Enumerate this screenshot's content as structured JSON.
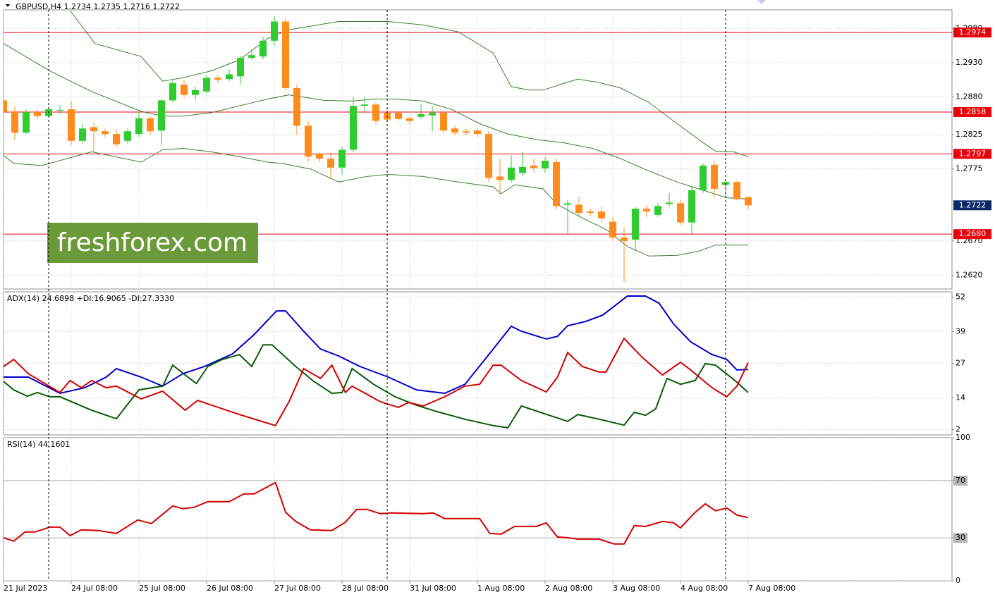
{
  "chart_data": [
    {
      "type": "candlestick",
      "title": "GBPUSD,H4  1.2734 1.2735 1.2716 1.2722",
      "open": [
        1.2875,
        1.2859,
        1.2828,
        1.2858,
        1.2852,
        1.286,
        1.2862,
        1.2816,
        1.2836,
        1.283,
        1.2826,
        1.2816,
        1.2826,
        1.2849,
        1.2831,
        1.2875,
        1.2898,
        1.2883,
        1.2888,
        1.2908,
        1.2906,
        1.291,
        1.2937,
        1.2939,
        1.2962,
        1.299,
        1.2893,
        1.2838,
        1.2797,
        1.279,
        1.2777,
        1.2803,
        1.2867,
        1.2869,
        1.2857,
        1.2857,
        1.2849,
        1.2851,
        1.2853,
        1.2857,
        1.2834,
        1.283,
        1.2831,
        1.2826,
        1.2764,
        1.2759,
        1.2769,
        1.278,
        1.2776,
        1.2785,
        1.2723,
        1.2723,
        1.2713,
        1.2713,
        1.2698,
        1.2675,
        1.2672,
        1.2717,
        1.2708,
        1.2724,
        1.2725,
        1.2697,
        1.2744,
        1.2781,
        1.2752,
        1.2756,
        1.2734
      ],
      "high": [
        1.29,
        1.2866,
        1.2862,
        1.2862,
        1.2866,
        1.2868,
        1.2874,
        1.284,
        1.2843,
        1.2834,
        1.2832,
        1.2834,
        1.2858,
        1.2852,
        1.2877,
        1.2904,
        1.2905,
        1.2895,
        1.2912,
        1.2912,
        1.292,
        1.294,
        1.295,
        1.2968,
        1.2998,
        1.2994,
        1.2898,
        1.2845,
        1.28,
        1.28,
        1.2807,
        1.288,
        1.288,
        1.2872,
        1.2862,
        1.286,
        1.2852,
        1.287,
        1.2866,
        1.286,
        1.2838,
        1.2834,
        1.2835,
        1.283,
        1.279,
        1.2795,
        1.28,
        1.279,
        1.2793,
        1.279,
        1.273,
        1.2735,
        1.2717,
        1.272,
        1.2705,
        1.269,
        1.272,
        1.2722,
        1.2725,
        1.274,
        1.273,
        1.275,
        1.2783,
        1.2786,
        1.276,
        1.2758,
        1.2735
      ],
      "low": [
        1.285,
        1.2817,
        1.2826,
        1.2848,
        1.285,
        1.2855,
        1.281,
        1.2812,
        1.28,
        1.2822,
        1.2806,
        1.2812,
        1.2822,
        1.2826,
        1.281,
        1.2872,
        1.288,
        1.2875,
        1.2885,
        1.29,
        1.2903,
        1.2898,
        1.2934,
        1.2935,
        1.2955,
        1.289,
        1.2825,
        1.2785,
        1.2785,
        1.276,
        1.2767,
        1.28,
        1.286,
        1.284,
        1.2842,
        1.2845,
        1.284,
        1.2848,
        1.283,
        1.2828,
        1.2824,
        1.2824,
        1.2822,
        1.2756,
        1.2738,
        1.2755,
        1.2765,
        1.277,
        1.277,
        1.2716,
        1.268,
        1.2704,
        1.2706,
        1.2698,
        1.267,
        1.261,
        1.2655,
        1.2705,
        1.2705,
        1.272,
        1.2693,
        1.268,
        1.274,
        1.2735,
        1.2735,
        1.2729,
        1.2716
      ],
      "close": [
        1.2858,
        1.2828,
        1.2858,
        1.2852,
        1.2862,
        1.2861,
        1.2816,
        1.2834,
        1.283,
        1.2826,
        1.2811,
        1.283,
        1.2849,
        1.283,
        1.2875,
        1.29,
        1.2883,
        1.289,
        1.2908,
        1.2905,
        1.2913,
        1.2937,
        1.2941,
        1.2962,
        1.299,
        1.2893,
        1.2838,
        1.2793,
        1.279,
        1.2777,
        1.2803,
        1.2867,
        1.2869,
        1.2845,
        1.2847,
        1.2848,
        1.2845,
        1.2855,
        1.2857,
        1.2831,
        1.2828,
        1.2828,
        1.2826,
        1.2762,
        1.2759,
        1.2777,
        1.2778,
        1.2776,
        1.2787,
        1.2721,
        1.2725,
        1.2711,
        1.2711,
        1.2703,
        1.2675,
        1.267,
        1.2717,
        1.2713,
        1.2721,
        1.2726,
        1.2697,
        1.2744,
        1.278,
        1.2746,
        1.2756,
        1.2731,
        1.2722
      ],
      "up_color": "#2ecc2e",
      "down_color": "#ff8c1a",
      "bands": [
        {
          "color": "#3d7d33",
          "x": [
            5.9,
            8.1,
            12.2,
            14.1,
            15.9,
            18.4,
            20.9,
            23.4,
            25.3,
            29.7,
            34.1,
            37.2,
            40.3,
            43.4,
            45,
            46.6,
            47.8,
            49.7,
            50.9,
            52.8,
            54.7,
            57.2,
            59.7,
            62.2,
            63.1,
            64.7,
            66
          ],
          "values": [
            1.3006,
            1.2958,
            1.2939,
            1.2903,
            1.2908,
            1.2918,
            1.2934,
            1.2965,
            1.2978,
            1.299,
            1.299,
            1.2985,
            1.2975,
            1.2944,
            1.2895,
            1.289,
            1.289,
            1.29,
            1.2906,
            1.2901,
            1.2893,
            1.2872,
            1.2841,
            1.2811,
            1.2801,
            1.28,
            1.2793
          ]
        },
        {
          "color": "#3d7d33",
          "x": [
            0,
            4.1,
            7.8,
            12.2,
            14.1,
            15.9,
            18.4,
            20.9,
            23.4,
            25.3,
            28.4,
            30.9,
            32.8,
            34.7,
            37.2,
            39.7,
            42.2,
            44.7,
            47.2,
            49.7,
            52.2,
            54.7,
            57.2,
            59.7,
            61.6,
            64.1,
            66
          ],
          "values": [
            1.2958,
            1.2918,
            1.2888,
            1.2859,
            1.2852,
            1.2852,
            1.2857,
            1.2867,
            1.2877,
            1.2883,
            1.2875,
            1.2874,
            1.2877,
            1.2877,
            1.2874,
            1.2862,
            1.2841,
            1.2826,
            1.2818,
            1.2813,
            1.2805,
            1.279,
            1.2772,
            1.2756,
            1.2746,
            1.2733,
            1.2731
          ]
        },
        {
          "color": "#3d7d33",
          "x": [
            0,
            0.9,
            3.4,
            7.8,
            12.2,
            14.1,
            15.9,
            18.4,
            20.9,
            23.4,
            24.7,
            27.2,
            29.7,
            32.2,
            34.1,
            37.2,
            40.3,
            43.4,
            44.1,
            45.3,
            47.8,
            49.1,
            51.6,
            53.4,
            55.3,
            57.2,
            59.7,
            61.6,
            63.1,
            66
          ],
          "values": [
            1.2795,
            1.2783,
            1.278,
            1.28,
            1.2785,
            1.2803,
            1.2805,
            1.28,
            1.2793,
            1.2785,
            1.2783,
            1.2775,
            1.2756,
            1.2764,
            1.2767,
            1.2764,
            1.2756,
            1.2749,
            1.2739,
            1.2752,
            1.2746,
            1.2723,
            1.2701,
            1.2687,
            1.2662,
            1.2648,
            1.2649,
            1.2655,
            1.2664,
            1.2664
          ]
        }
      ],
      "levels": [
        1.2974,
        1.2858,
        1.2797,
        {
          "value": 1.268,
          "label": "1.2680"
        }
      ],
      "level_color": "#e8000b",
      "last_price": 1.2722,
      "last_price_color": "#0b2a66",
      "period_separators": [
        4,
        34,
        64
      ],
      "watermark": "freshforex.com",
      "watermark_color": "#6b9a3a",
      "xlim": [
        0,
        84.06
      ],
      "ylim": [
        1.26,
        1.3007
      ],
      "yticks": [
        {
          "value": 1.262,
          "label": "1.2620"
        },
        {
          "value": 1.267,
          "label": "1.2670"
        },
        1.2775,
        1.2825,
        {
          "value": 1.288,
          "label": "1.2880"
        },
        {
          "value": 1.293,
          "label": "1.2930"
        },
        {
          "value": 1.298,
          "label": "1.2980"
        }
      ],
      "grid": true
    },
    {
      "type": "line",
      "title": "ADX(14) 24.6898 +DI:16.9065 -DI:27.3330",
      "series": [
        {
          "color": "#0000c8",
          "x": [
            0,
            2.2,
            5,
            7.2,
            9.1,
            10,
            12.2,
            14.1,
            15.9,
            17.8,
            20.3,
            22.2,
            24.2,
            25,
            26.6,
            28.1,
            29.7,
            31.6,
            34.1,
            36.6,
            39.1,
            40.9,
            43.4,
            45,
            45.9,
            48.1,
            49.1,
            50,
            51.6,
            53.1,
            55.3,
            56.9,
            58.1,
            59.4,
            60.9,
            62.8,
            64.1,
            65,
            66
          ],
          "values": [
            21.8,
            21.8,
            15.7,
            17.8,
            21.8,
            25.0,
            21.8,
            18.4,
            23.1,
            25.8,
            30.6,
            37.8,
            46.8,
            46.8,
            39.1,
            32.4,
            29.8,
            25.8,
            21.8,
            17.0,
            15.7,
            19.1,
            32.4,
            41.0,
            39.1,
            36.2,
            37.2,
            41.2,
            42.8,
            45.2,
            52.4,
            52.4,
            49.7,
            41.8,
            35.1,
            30.3,
            28.5,
            24.5,
            24.7
          ]
        },
        {
          "color": "#0a5a0a",
          "x": [
            0,
            0.9,
            2.1,
            3,
            4.1,
            5,
            7.8,
            10,
            12,
            14.1,
            15,
            16.1,
            17.1,
            18.1,
            19.4,
            20.9,
            22,
            23,
            23.8,
            25.9,
            27.5,
            29.1,
            30,
            30.9,
            32.8,
            34.7,
            36.6,
            38.4,
            40.9,
            43.4,
            44.7,
            45.9,
            47.8,
            50,
            50.9,
            52.8,
            55,
            55.9,
            56.9,
            57.8,
            58.8,
            60,
            61.3,
            62.2,
            63.1,
            64.7,
            66
          ],
          "values": [
            20.2,
            17.0,
            14.6,
            16.0,
            14.4,
            14.4,
            9.3,
            6.1,
            17.0,
            18.4,
            26.3,
            22.6,
            19.4,
            25.8,
            28.5,
            30.3,
            25.8,
            34.0,
            34.0,
            25.8,
            20.2,
            15.7,
            16.0,
            25.0,
            19.1,
            14.4,
            11.2,
            8.8,
            5.9,
            3.5,
            2.7,
            10.9,
            8.2,
            5.1,
            7.7,
            5.9,
            3.7,
            8.5,
            7.4,
            9.8,
            21.3,
            19.1,
            20.5,
            26.9,
            26.3,
            21.0,
            16.0
          ]
        },
        {
          "color": "#d40000",
          "x": [
            0,
            0.9,
            2.2,
            5,
            5.9,
            6.9,
            7.8,
            9.1,
            10,
            12.2,
            14.1,
            16.1,
            17.2,
            20.9,
            24.1,
            25.3,
            26.6,
            28.1,
            29.1,
            30.3,
            30.9,
            33.4,
            35,
            35.9,
            37.2,
            39.1,
            40.9,
            42.2,
            43.4,
            44.1,
            45.9,
            48.1,
            49.1,
            50,
            51.3,
            52.8,
            53.4,
            55,
            56.6,
            58.4,
            60,
            60.9,
            62.8,
            64.1,
            65,
            66
          ],
          "values": [
            25.8,
            28.5,
            23.1,
            16.0,
            20.5,
            17.8,
            20.5,
            17.8,
            18.4,
            13.6,
            16.5,
            9.3,
            13.0,
            7.7,
            3.5,
            12.5,
            25.0,
            21.3,
            26.3,
            16.0,
            18.4,
            12.5,
            10.4,
            12.2,
            10.9,
            14.4,
            18.4,
            19.1,
            26.3,
            26.3,
            20.5,
            16.2,
            21.8,
            31.1,
            25.8,
            23.7,
            23.7,
            36.4,
            29.3,
            22.6,
            27.4,
            24.5,
            17.8,
            14.4,
            18.4,
            27.3
          ]
        }
      ],
      "xlim": [
        0,
        84.06
      ],
      "ylim": [
        0,
        54
      ],
      "yticks": [
        2,
        14,
        27,
        39,
        52
      ],
      "grid": true
    },
    {
      "type": "line",
      "title": "RSI(14) 44.1601",
      "series": [
        {
          "color": "#d40000",
          "x": [
            0,
            0.9,
            1.9,
            2.8,
            4.1,
            5,
            5.9,
            6.9,
            8.4,
            10,
            11.9,
            13.1,
            15,
            15.9,
            16.9,
            18.1,
            20,
            21.3,
            22.2,
            24.1,
            25,
            25.9,
            27.2,
            29.1,
            30.3,
            31.3,
            32.2,
            33.4,
            34.4,
            37.2,
            38.1,
            39.1,
            40.9,
            42.2,
            43.1,
            44.1,
            45.3,
            47.2,
            48.1,
            49.1,
            50,
            50.9,
            52.8,
            54.1,
            55,
            55.9,
            56.9,
            58.4,
            59.4,
            60,
            61.3,
            62.2,
            63.1,
            64.1,
            65,
            66
          ],
          "values": [
            30.1,
            27.7,
            34.1,
            34.1,
            37.5,
            37.5,
            31.6,
            35.6,
            35.1,
            33.1,
            42.5,
            40.0,
            52.3,
            50.4,
            51.4,
            55.3,
            55.3,
            60.7,
            60.7,
            68.6,
            47.9,
            41.5,
            35.6,
            35.1,
            41.0,
            49.9,
            49.9,
            46.9,
            47.4,
            46.9,
            47.4,
            43.5,
            43.5,
            43.5,
            33.1,
            32.6,
            38.0,
            38.0,
            40.5,
            30.6,
            30.1,
            29.1,
            29.1,
            25.7,
            25.7,
            38.5,
            38.0,
            41.5,
            40.5,
            37.0,
            47.9,
            53.8,
            48.9,
            50.9,
            45.9,
            44.2
          ]
        }
      ],
      "levels": [
        70,
        30
      ],
      "level_color": "#b4b4b4",
      "xlim": [
        0,
        84.06
      ],
      "ylim": [
        0,
        100
      ],
      "yticks": [
        0,
        30,
        70,
        100
      ],
      "xticks": [
        {
          "value": 0,
          "label": "21 Jul 2023"
        },
        {
          "value": 6,
          "label": "24 Jul 08:00"
        },
        {
          "value": 12,
          "label": "25 Jul 08:00"
        },
        {
          "value": 18,
          "label": "26 Jul 08:00"
        },
        {
          "value": 24,
          "label": "27 Jul 08:00"
        },
        {
          "value": 30,
          "label": "28 Jul 08:00"
        },
        {
          "value": 36,
          "label": "31 Jul 08:00"
        },
        {
          "value": 42,
          "label": "1 Aug 08:00"
        },
        {
          "value": 48,
          "label": "2 Aug 08:00"
        },
        {
          "value": 54,
          "label": "3 Aug 08:00"
        },
        {
          "value": 60,
          "label": "4 Aug 08:00"
        },
        {
          "value": 66,
          "label": "7 Aug 08:00"
        }
      ],
      "grid": true
    }
  ]
}
